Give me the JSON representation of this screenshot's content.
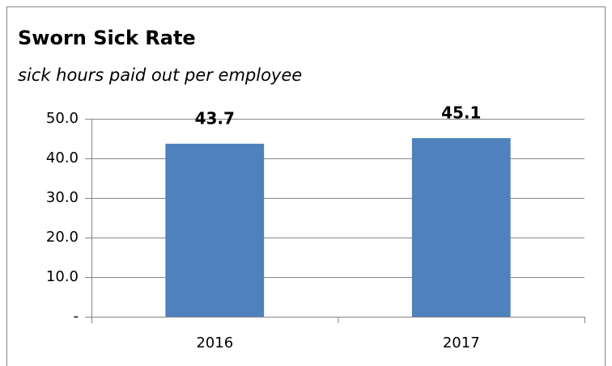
{
  "chart_data": {
    "type": "bar",
    "title": "Sworn Sick Rate",
    "subtitle": "sick hours paid out per employee",
    "categories": [
      "2016",
      "2017"
    ],
    "values": [
      43.7,
      45.1
    ],
    "color": "#4f81bd",
    "ylim": [
      0,
      50
    ],
    "yticks": [
      {
        "value": 0,
        "label": "-"
      },
      {
        "value": 10,
        "label": "10.0"
      },
      {
        "value": 20,
        "label": "20.0"
      },
      {
        "value": 30,
        "label": "30.0"
      },
      {
        "value": 40,
        "label": "40.0"
      },
      {
        "value": 50,
        "label": "50.0"
      }
    ],
    "grid": true
  }
}
